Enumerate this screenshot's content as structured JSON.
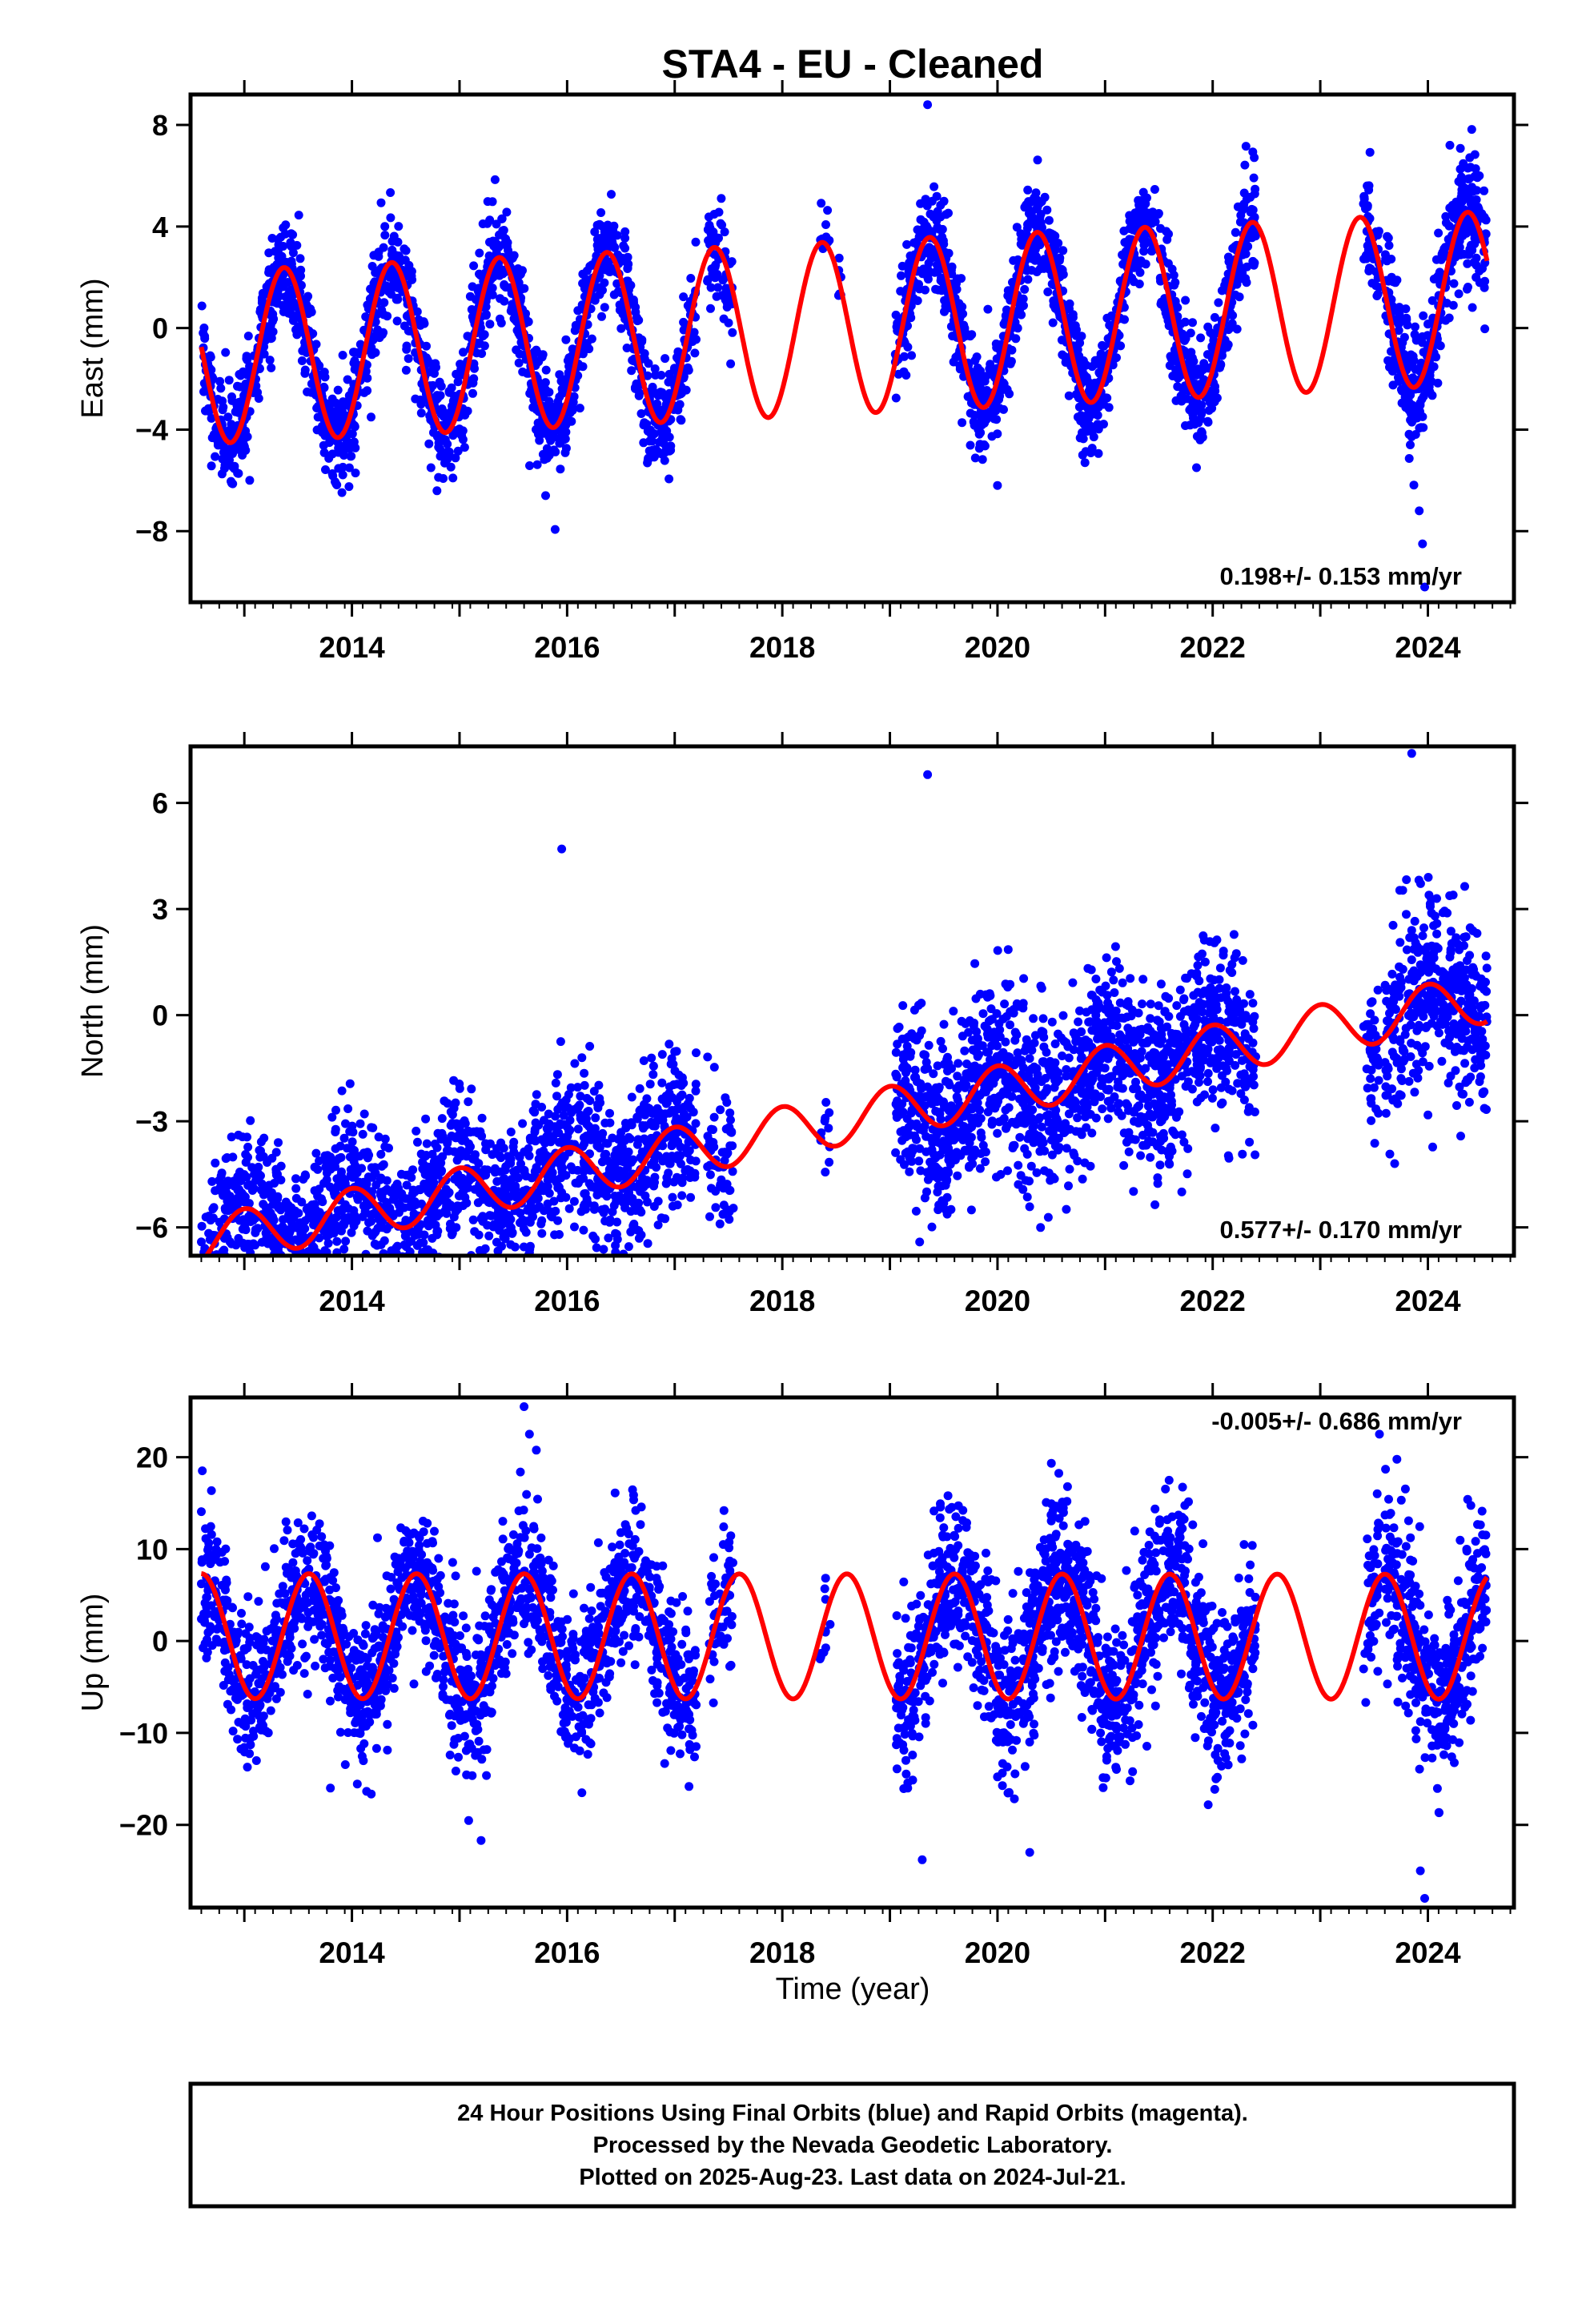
{
  "title": "STA4  - EU - Cleaned",
  "colors": {
    "data": "#0000ff",
    "model": "#ff0000",
    "frame": "#000000",
    "background": "#ffffff"
  },
  "xlabel": "Time (year)",
  "footer": {
    "lines": [
      "24 Hour Positions Using Final Orbits (blue) and Rapid Orbits (magenta).",
      "Processed by the Nevada Geodetic Laboratory.",
      "Plotted on 2025-Aug-23. Last data on 2024-Jul-21."
    ]
  },
  "chart_data": [
    {
      "type": "scatter",
      "name": "east",
      "ylabel": "East (mm)",
      "rate_label": "0.198+/- 0.153 mm/yr",
      "rate_position": "bottom-right",
      "xlim": [
        2012.5,
        2024.8
      ],
      "ylim": [
        -10.8,
        9.2
      ],
      "x_ticks": [
        2014,
        2016,
        2018,
        2020,
        2022,
        2024
      ],
      "y_ticks": [
        -8,
        -4,
        0,
        4,
        8
      ],
      "model": {
        "offset": 0.0,
        "rate": 0.198,
        "amplitude": 3.4,
        "peak_year_fraction": 0.37,
        "start": 2012.6,
        "end": 2024.55
      },
      "data_segments": [
        {
          "start": 2012.6,
          "end": 2017.2,
          "density": 200,
          "noise": 1.0
        },
        {
          "start": 2017.3,
          "end": 2017.55,
          "density": 120,
          "noise": 1.0
        },
        {
          "start": 2018.35,
          "end": 2018.45,
          "density": 40,
          "noise": 0.6
        },
        {
          "start": 2018.5,
          "end": 2018.55,
          "density": 25,
          "noise": 0.6
        },
        {
          "start": 2019.05,
          "end": 2021.05,
          "density": 220,
          "noise": 1.0
        },
        {
          "start": 2021.05,
          "end": 2022.4,
          "density": 200,
          "noise": 1.0
        },
        {
          "start": 2023.4,
          "end": 2023.55,
          "density": 150,
          "noise": 1.0
        },
        {
          "start": 2023.6,
          "end": 2024.55,
          "density": 230,
          "noise": 1.2
        }
      ],
      "outliers": [
        [
          2019.35,
          8.8
        ],
        [
          2023.97,
          -10.2
        ],
        [
          2023.95,
          -8.5
        ],
        [
          2023.92,
          -7.2
        ],
        [
          2015.8,
          -6.6
        ],
        [
          2013.05,
          -6.0
        ],
        [
          2020.0,
          -6.2
        ],
        [
          2021.85,
          -5.5
        ]
      ]
    },
    {
      "type": "scatter",
      "name": "north",
      "ylabel": "North (mm)",
      "rate_label": "0.577+/- 0.170 mm/yr",
      "rate_position": "bottom-right",
      "xlim": [
        2012.5,
        2024.8
      ],
      "ylim": [
        -6.8,
        7.6
      ],
      "x_ticks": [
        2014,
        2016,
        2018,
        2020,
        2022,
        2024
      ],
      "y_ticks": [
        -6,
        -3,
        0,
        3,
        6
      ],
      "model": {
        "offset": -3.0,
        "rate": 0.577,
        "amplitude": 0.7,
        "peak_year_fraction": 0.0,
        "start": 2012.6,
        "end": 2024.55
      },
      "data_segments": [
        {
          "start": 2012.6,
          "end": 2017.2,
          "density": 200,
          "noise": 1.1
        },
        {
          "start": 2017.3,
          "end": 2017.55,
          "density": 120,
          "noise": 1.1
        },
        {
          "start": 2018.35,
          "end": 2018.45,
          "density": 40,
          "noise": 0.8
        },
        {
          "start": 2019.05,
          "end": 2022.4,
          "density": 230,
          "noise": 1.2
        },
        {
          "start": 2023.4,
          "end": 2023.55,
          "density": 150,
          "noise": 1.0
        },
        {
          "start": 2023.6,
          "end": 2024.55,
          "density": 230,
          "noise": 1.3
        }
      ],
      "outliers": [
        [
          2019.35,
          6.8
        ],
        [
          2015.95,
          4.7
        ],
        [
          2023.85,
          7.4
        ],
        [
          2013.1,
          -6.5
        ],
        [
          2014.1,
          -5.7
        ],
        [
          2021.25,
          -3.5
        ],
        [
          2019.1,
          -3.3
        ]
      ]
    },
    {
      "type": "scatter",
      "name": "up",
      "ylabel": "Up (mm)",
      "rate_label": "-0.005+/- 0.686 mm/yr",
      "rate_position": "top-right",
      "xlim": [
        2012.5,
        2024.8
      ],
      "ylim": [
        -29.0,
        26.5
      ],
      "x_ticks": [
        2014,
        2016,
        2018,
        2020,
        2022,
        2024
      ],
      "y_ticks": [
        -20,
        -10,
        0,
        10,
        20
      ],
      "model": {
        "offset": 0.5,
        "rate": -0.005,
        "amplitude": 6.8,
        "peak_year_fraction": 0.6,
        "start": 2012.6,
        "end": 2024.55
      },
      "data_segments": [
        {
          "start": 2012.6,
          "end": 2017.2,
          "density": 200,
          "noise": 4.0
        },
        {
          "start": 2017.3,
          "end": 2017.55,
          "density": 120,
          "noise": 3.5
        },
        {
          "start": 2018.35,
          "end": 2018.45,
          "density": 40,
          "noise": 3.0
        },
        {
          "start": 2019.05,
          "end": 2022.4,
          "density": 230,
          "noise": 4.5
        },
        {
          "start": 2023.4,
          "end": 2023.55,
          "density": 150,
          "noise": 4.0
        },
        {
          "start": 2023.6,
          "end": 2024.55,
          "density": 230,
          "noise": 5.0
        }
      ],
      "outliers": [
        [
          2015.6,
          25.5
        ],
        [
          2015.65,
          22.5
        ],
        [
          2023.55,
          22.5
        ],
        [
          2023.97,
          -28.0
        ],
        [
          2023.93,
          -25.0
        ],
        [
          2019.3,
          -23.8
        ],
        [
          2015.2,
          -21.7
        ],
        [
          2020.3,
          -23.0
        ],
        [
          2013.8,
          -16.0
        ]
      ]
    }
  ]
}
